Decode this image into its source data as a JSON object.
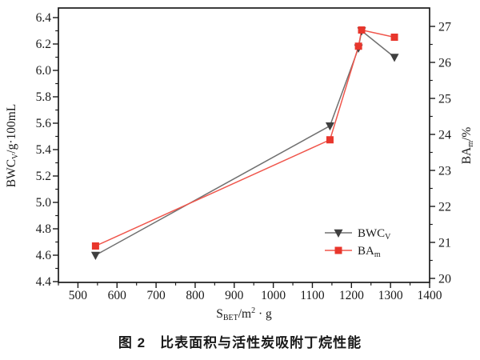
{
  "figure": {
    "caption": "图 2　比表面积与活性炭吸附丁烷性能",
    "background": "#ffffff",
    "text_color": "#1a1a1a"
  },
  "chart_data": {
    "type": "line",
    "title": "",
    "x": [
      545,
      1145,
      1218,
      1226,
      1310
    ],
    "series": [
      {
        "name": "BWCv",
        "axis": "left",
        "values": [
          4.6,
          5.58,
          6.17,
          6.3,
          6.1
        ],
        "line_color": "#707070",
        "marker": "triangle-down",
        "marker_color": "#3f3f3f"
      },
      {
        "name": "BAm",
        "axis": "right",
        "values": [
          20.9,
          23.85,
          26.45,
          26.9,
          26.7
        ],
        "line_color": "#f0564c",
        "marker": "square",
        "marker_color": "#e8362c"
      }
    ],
    "x_axis": {
      "min": 450,
      "max": 1400,
      "major_ticks": [
        500,
        600,
        700,
        800,
        900,
        1000,
        1100,
        1200,
        1300,
        1400
      ],
      "minor_step": 50,
      "label_rich": [
        {
          "t": "S"
        },
        {
          "t": "BET",
          "style": "sub"
        },
        {
          "t": "/m"
        },
        {
          "t": "2",
          "style": "sup"
        },
        {
          "t": " · g"
        }
      ]
    },
    "y_left": {
      "min": 4.4,
      "max": 6.4,
      "major_ticks": [
        4.4,
        4.6,
        4.8,
        5.0,
        5.2,
        5.4,
        5.6,
        5.8,
        6.0,
        6.2,
        6.4
      ],
      "minor_step": 0.1,
      "decimals": 1,
      "label_rich": [
        {
          "t": "BWC"
        },
        {
          "t": "V",
          "style": "sub"
        },
        {
          "t": "/g·100mL"
        }
      ]
    },
    "y_right": {
      "min": 20,
      "max": 27,
      "major_ticks": [
        20,
        21,
        22,
        23,
        24,
        25,
        26,
        27
      ],
      "minor_step": 0.5,
      "decimals": 0,
      "label_rich": [
        {
          "t": "BA"
        },
        {
          "t": "m",
          "style": "sub"
        },
        {
          "t": "/%"
        }
      ]
    },
    "legend": {
      "position": "inside-right-lower",
      "entries": [
        {
          "series_index": 0,
          "label_rich": [
            {
              "t": "BWC"
            },
            {
              "t": "V",
              "style": "sub"
            }
          ]
        },
        {
          "series_index": 1,
          "label_rich": [
            {
              "t": "BA"
            },
            {
              "t": "m",
              "style": "sub"
            }
          ]
        }
      ]
    },
    "grid": false
  }
}
